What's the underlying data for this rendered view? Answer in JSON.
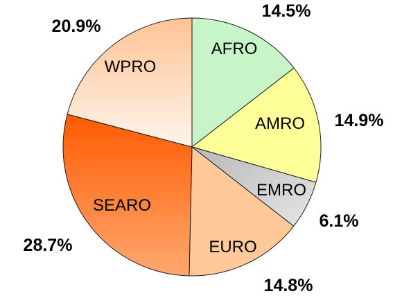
{
  "chart_data": {
    "type": "pie",
    "start_angle_deg": 0,
    "direction": "clockwise",
    "slices": [
      {
        "label": "AFRO",
        "value": 14.5,
        "value_label": "14.5%",
        "color": "#c8f5c8",
        "gradient": [
          "#c8f5c8",
          "#c8f5c8"
        ]
      },
      {
        "label": "AMRO",
        "value": 14.9,
        "value_label": "14.9%",
        "color": "#ffff99",
        "gradient": [
          "#ffff99",
          "#ffff99"
        ]
      },
      {
        "label": "EMRO",
        "value": 6.1,
        "value_label": "6.1%",
        "color": "#d0d0d0",
        "gradient": [
          "#b8b8b8",
          "#e6e6e6"
        ]
      },
      {
        "label": "EURO",
        "value": 14.8,
        "value_label": "14.8%",
        "color": "#ffc999",
        "gradient": [
          "#ffc999",
          "#ffc999"
        ]
      },
      {
        "label": "SEARO",
        "value": 28.7,
        "value_label": "28.7%",
        "color": "#ff6a10",
        "gradient": [
          "#ff5a00",
          "#ffa870"
        ]
      },
      {
        "label": "WPRO",
        "value": 20.9,
        "value_label": "20.9%",
        "color": "#ffd6b0",
        "gradient": [
          "#ffc394",
          "#fff4ec"
        ]
      }
    ]
  }
}
